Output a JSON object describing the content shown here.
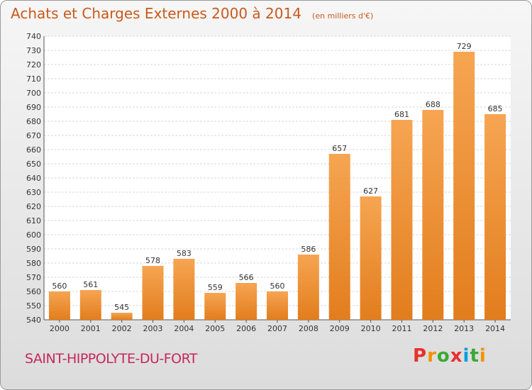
{
  "header": {
    "title": "Achats et Charges Externes 2000 à 2014",
    "unit": "(en milliers d'€)"
  },
  "footer": {
    "commune": "SAINT-HIPPOLYTE-DU-FORT",
    "brand": "Proxiti",
    "brand_colors": [
      "#e8302d",
      "#f39200",
      "#3aaa35",
      "#e8302d",
      "#009fe3",
      "#3aaa35",
      "#f39200"
    ]
  },
  "chart_data": {
    "type": "bar",
    "title": "Achats et Charges Externes 2000 à 2014",
    "subtitle": "(en milliers d'€)",
    "categories": [
      "2000",
      "2001",
      "2002",
      "2003",
      "2004",
      "2005",
      "2006",
      "2007",
      "2008",
      "2009",
      "2010",
      "2011",
      "2012",
      "2013",
      "2014"
    ],
    "values": [
      560,
      561,
      545,
      578,
      583,
      559,
      566,
      560,
      586,
      657,
      627,
      681,
      688,
      729,
      685
    ],
    "ylim": [
      540,
      740
    ],
    "ytick_step": 10,
    "grid": true,
    "bar_color_top": "#f6a552",
    "bar_color_bottom": "#e27d1d",
    "text_color": "#333333"
  }
}
